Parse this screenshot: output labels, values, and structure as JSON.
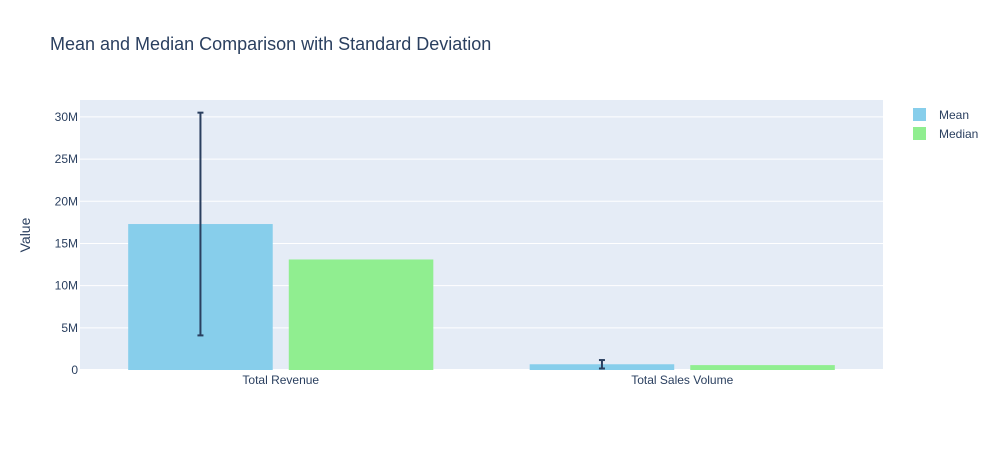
{
  "chart_data": {
    "type": "bar",
    "title": "Mean and Median Comparison with Standard Deviation",
    "xlabel": "",
    "ylabel": "Value",
    "categories": [
      "Total Revenue",
      "Total Sales Volume"
    ],
    "series": [
      {
        "name": "Mean",
        "color": "#87ceeb",
        "values": [
          17300000,
          680000
        ],
        "error": [
          13200000,
          500000
        ]
      },
      {
        "name": "Median",
        "color": "#90ee90",
        "values": [
          13100000,
          580000
        ]
      }
    ],
    "ylim": [
      0,
      32000000
    ],
    "yticks": [
      0,
      5000000,
      10000000,
      15000000,
      20000000,
      25000000,
      30000000
    ],
    "ytick_labels": [
      "0",
      "5M",
      "10M",
      "15M",
      "20M",
      "25M",
      "30M"
    ],
    "grid": true,
    "legend_position": "top-right",
    "plot_background": "#e5ecf6"
  }
}
